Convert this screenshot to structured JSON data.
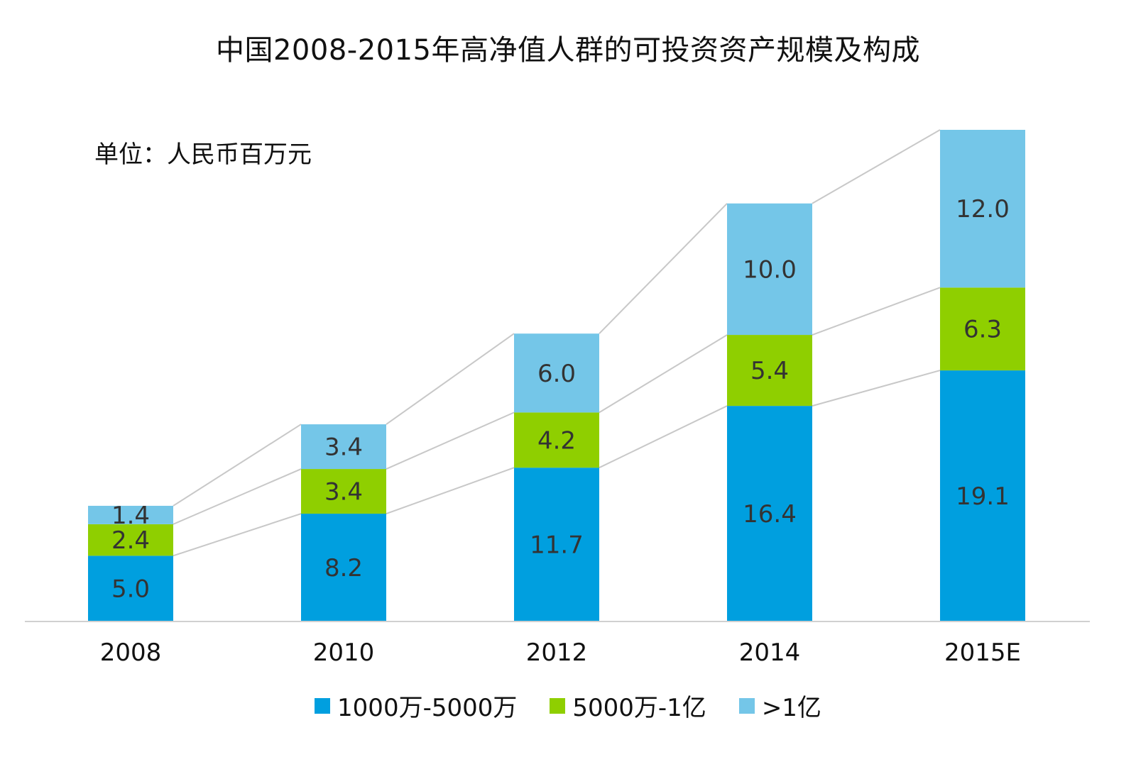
{
  "chart_data": {
    "type": "bar",
    "stacked": true,
    "title": "中国2008-2015年高净值人群的可投资资产规模及构成",
    "unit_label": "单位：人民币百万元",
    "categories": [
      "2008",
      "2010",
      "2012",
      "2014",
      "2015E"
    ],
    "series": [
      {
        "name": "1000万-5000万",
        "color": "#009fdf",
        "values": [
          5.0,
          8.2,
          11.7,
          16.4,
          19.1
        ]
      },
      {
        "name": "5000万-1亿",
        "color": "#8fcf00",
        "values": [
          2.4,
          3.4,
          4.2,
          5.4,
          6.3
        ]
      },
      {
        "name": ">1亿",
        "color": "#74c6e8",
        "values": [
          1.4,
          3.4,
          6.0,
          10.0,
          12.0
        ]
      }
    ],
    "data_labels": [
      [
        "5.0",
        "8.2",
        "11.7",
        "16.4",
        "19.1"
      ],
      [
        "2.4",
        "3.4",
        "4.2",
        "5.4",
        "6.3"
      ],
      [
        "1.4",
        "3.4",
        "6.0",
        "10.0",
        "12.0"
      ]
    ],
    "ylim": [
      0,
      37.4
    ],
    "grid": false,
    "connector_lines": true,
    "legend_position": "bottom"
  }
}
